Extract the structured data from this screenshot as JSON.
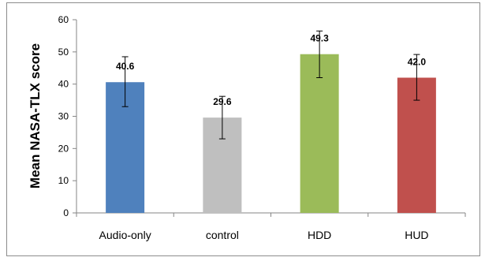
{
  "chart_data": {
    "type": "bar",
    "categories": [
      "Audio-only",
      "control",
      "HDD",
      "HUD"
    ],
    "values": [
      40.6,
      29.6,
      49.3,
      42.0
    ],
    "value_labels": [
      "40.6",
      "29.6",
      "49.3",
      "42.0"
    ],
    "error_low": [
      33.0,
      23.0,
      42.0,
      35.0
    ],
    "error_high": [
      48.5,
      36.2,
      56.5,
      49.2
    ],
    "colors": [
      "#4f81bd",
      "#bfbfbf",
      "#9bbb59",
      "#c0504d"
    ],
    "ylabel": "Mean NASA-TLX score",
    "xlabel": "",
    "title": "",
    "ylim": [
      0,
      60
    ],
    "yticks": [
      0,
      10,
      20,
      30,
      40,
      50,
      60
    ],
    "grid": false,
    "legend": "none"
  }
}
